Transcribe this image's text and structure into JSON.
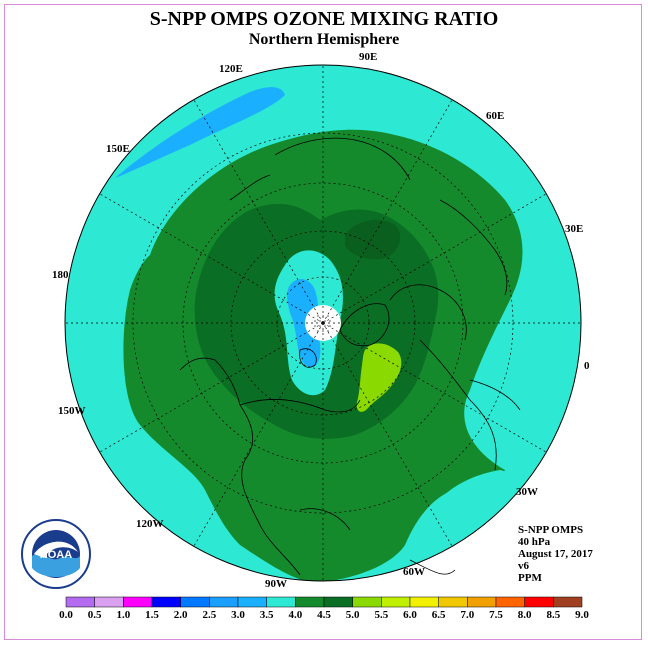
{
  "header": {
    "title": "S-NPP OMPS OZONE MIXING RATIO",
    "subtitle": "Northern Hemisphere"
  },
  "map": {
    "projection": "north-polar-stereographic",
    "longitude_labels": [
      "90E",
      "60E",
      "30E",
      "0",
      "30W",
      "60W",
      "90W",
      "120W",
      "150W",
      "180",
      "150E",
      "120E"
    ],
    "fill_colors": {
      "3.0-3.5": "#1ab0ff",
      "3.5-4.0": "#2de8d2",
      "4.0-4.5": "#148a2d",
      "4.5-5.0": "#0a6e24",
      "5.0-5.5": "#8ad900",
      "5.5-6.0": "#c0f000",
      "missing": "#ffffff"
    }
  },
  "info": {
    "instrument": "S-NPP OMPS",
    "level": "40 hPa",
    "date": "August 17, 2017",
    "version": "v6",
    "units": "PPM"
  },
  "logo": {
    "name": "NOAA",
    "ring_text": "NATIONAL OCEANIC AND ATMOSPHERIC ADMINISTRATION · U.S. DEPARTMENT OF COMMERCE"
  },
  "colorbar": {
    "tick_labels": [
      "0.0",
      "0.5",
      "1.0",
      "1.5",
      "2.0",
      "2.5",
      "3.0",
      "3.5",
      "4.0",
      "4.5",
      "5.0",
      "5.5",
      "6.0",
      "6.5",
      "7.0",
      "7.5",
      "8.0",
      "8.5",
      "9.0"
    ],
    "colors": [
      "#b36cf0",
      "#d9a0f0",
      "#ff00ff",
      "#0000ff",
      "#0078ff",
      "#1a9fff",
      "#1ab0ff",
      "#2de8d2",
      "#148a2d",
      "#0a6e24",
      "#8ad900",
      "#c0f000",
      "#f0f000",
      "#f0c800",
      "#f0a000",
      "#ff6400",
      "#ff0000",
      "#a04020"
    ]
  }
}
